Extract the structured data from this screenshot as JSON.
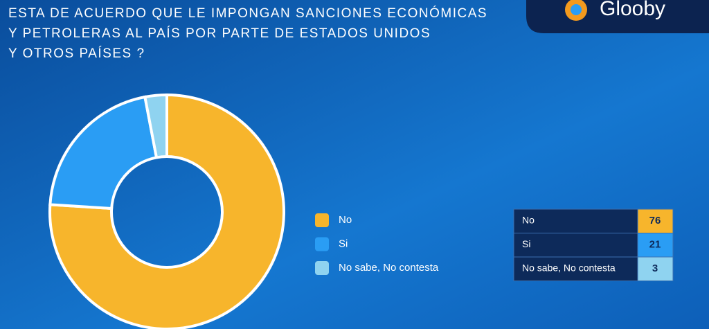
{
  "brand": "Glooby",
  "chart_data": {
    "type": "donut",
    "title": [
      "ESTA DE ACUERDO QUE LE IMPONGAN SANCIONES ECONÓMICAS",
      "Y PETROLERAS AL PAÍS POR PARTE DE ESTADOS UNIDOS",
      "Y OTROS PAÍSES ?"
    ],
    "categories": [
      "No",
      "Si",
      "No sabe, No contesta"
    ],
    "values": [
      76,
      21,
      3
    ],
    "colors": [
      "#f7b52c",
      "#2a9df4",
      "#8fd3f0"
    ]
  }
}
